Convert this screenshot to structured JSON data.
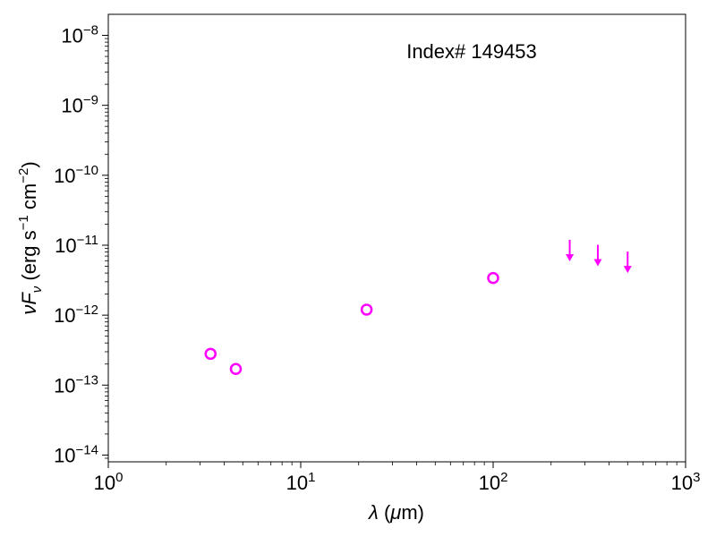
{
  "chart_data": {
    "type": "scatter",
    "annotation": "Index# 149453",
    "xlabel": {
      "symbol": "λ",
      "unit": " (",
      "unit_symbol": "μ",
      "unit_rest": "m)"
    },
    "ylabel": {
      "nu": "ν",
      "F": "F",
      "sub": "ν",
      "units_a": " (erg s",
      "sup1": "−1",
      "units_b": " cm",
      "sup2": "−2",
      "units_c": ")"
    },
    "xscale": "log",
    "yscale": "log",
    "xlim": [
      1,
      1000
    ],
    "ylim": [
      8e-15,
      2e-08
    ],
    "x_ticks": [
      {
        "base": "10",
        "exp": "0"
      },
      {
        "base": "10",
        "exp": "1"
      },
      {
        "base": "10",
        "exp": "2"
      },
      {
        "base": "10",
        "exp": "3"
      }
    ],
    "y_ticks": [
      {
        "base": "10",
        "exp": "−14"
      },
      {
        "base": "10",
        "exp": "−13"
      },
      {
        "base": "10",
        "exp": "−12"
      },
      {
        "base": "10",
        "exp": "−11"
      },
      {
        "base": "10",
        "exp": "−10"
      },
      {
        "base": "10",
        "exp": "−9"
      },
      {
        "base": "10",
        "exp": "−8"
      }
    ],
    "x_tick_values": [
      1,
      10,
      100,
      1000
    ],
    "y_tick_values": [
      1e-14,
      1e-13,
      1e-12,
      1e-11,
      1e-10,
      1e-09,
      1e-08
    ],
    "grid": false,
    "marker_color": "#ff00ff",
    "series": [
      {
        "marker": "open-circle",
        "points": [
          {
            "x": 3.4,
            "y": 2.8e-13
          },
          {
            "x": 4.6,
            "y": 1.7e-13
          },
          {
            "x": 22,
            "y": 1.2e-12
          },
          {
            "x": 100,
            "y": 3.4e-12
          }
        ]
      },
      {
        "marker": "upper-limit-arrow",
        "points": [
          {
            "x": 250,
            "y": 1e-11
          },
          {
            "x": 350,
            "y": 8.5e-12
          },
          {
            "x": 500,
            "y": 6.8e-12
          }
        ]
      }
    ]
  }
}
